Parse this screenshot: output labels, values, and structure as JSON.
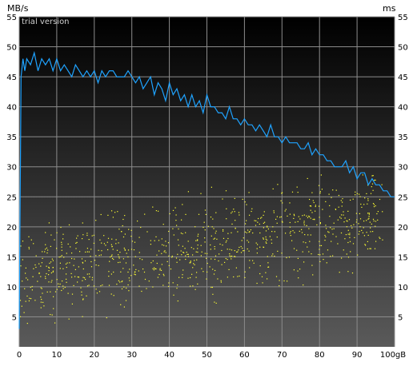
{
  "labels": {
    "left_unit": "MB/s",
    "right_unit": "ms",
    "watermark": "trial version",
    "x_unit_suffix": "gB"
  },
  "colors": {
    "plot_top": "#000000",
    "plot_bottom": "#5a5a5a",
    "grid": "#8c8c8c",
    "line": "#1fa3ff",
    "scatter": "#ffff33",
    "axis_text": "#000000",
    "watermark": "#d0d0d0"
  },
  "chart_data": {
    "type": "line",
    "grid": true,
    "x_axis": {
      "unit": "gB",
      "range": [
        0,
        100
      ],
      "ticks": [
        0,
        10,
        20,
        30,
        40,
        50,
        60,
        70,
        80,
        90,
        100
      ]
    },
    "y_left": {
      "unit": "MB/s",
      "range": [
        0,
        55
      ],
      "ticks": [
        5,
        10,
        15,
        20,
        25,
        30,
        35,
        40,
        45,
        50,
        55
      ]
    },
    "y_right": {
      "unit": "ms",
      "range": [
        0,
        55
      ],
      "ticks": [
        5,
        10,
        15,
        20,
        25,
        30,
        35,
        40,
        45,
        50,
        55
      ]
    },
    "series": [
      {
        "type": "line",
        "axis": "left",
        "x": [
          0,
          0.5,
          1,
          1.5,
          2,
          3,
          4,
          5,
          6,
          7,
          8,
          9,
          10,
          11,
          12,
          13,
          14,
          15,
          16,
          17,
          18,
          19,
          20,
          21,
          22,
          23,
          24,
          25,
          26,
          27,
          28,
          29,
          30,
          31,
          32,
          33,
          34,
          35,
          36,
          37,
          38,
          39,
          40,
          41,
          42,
          43,
          44,
          45,
          46,
          47,
          48,
          49,
          50,
          51,
          52,
          53,
          54,
          55,
          56,
          57,
          58,
          59,
          60,
          61,
          62,
          63,
          64,
          65,
          66,
          67,
          68,
          69,
          70,
          71,
          72,
          73,
          74,
          75,
          76,
          77,
          78,
          79,
          80,
          81,
          82,
          83,
          84,
          85,
          86,
          87,
          88,
          89,
          90,
          91,
          92,
          93,
          94,
          95,
          96,
          97,
          98,
          99,
          100
        ],
        "y": [
          3,
          45,
          48,
          46,
          48,
          47,
          49,
          46,
          48,
          47,
          48,
          46,
          48,
          46,
          47,
          46,
          45,
          47,
          46,
          45,
          46,
          45,
          46,
          44,
          46,
          45,
          46,
          46,
          45,
          45,
          45,
          46,
          45,
          44,
          45,
          43,
          44,
          45,
          42,
          44,
          43,
          41,
          44,
          42,
          43,
          41,
          42,
          40,
          42,
          40,
          41,
          39,
          42,
          40,
          40,
          39,
          39,
          38,
          40,
          38,
          38,
          37,
          38,
          37,
          37,
          36,
          37,
          36,
          35,
          37,
          35,
          35,
          34,
          35,
          34,
          34,
          34,
          33,
          33,
          34,
          32,
          33,
          32,
          32,
          31,
          31,
          30,
          30,
          30,
          31,
          29,
          30,
          28,
          29,
          29,
          27,
          28,
          27,
          27,
          26,
          26,
          25,
          25
        ]
      },
      {
        "type": "scatter",
        "axis": "right",
        "trend": {
          "start": [
            0,
            11.5
          ],
          "end": [
            90,
            21
          ]
        },
        "count": 900,
        "x_range": [
          0,
          97
        ]
      }
    ]
  }
}
